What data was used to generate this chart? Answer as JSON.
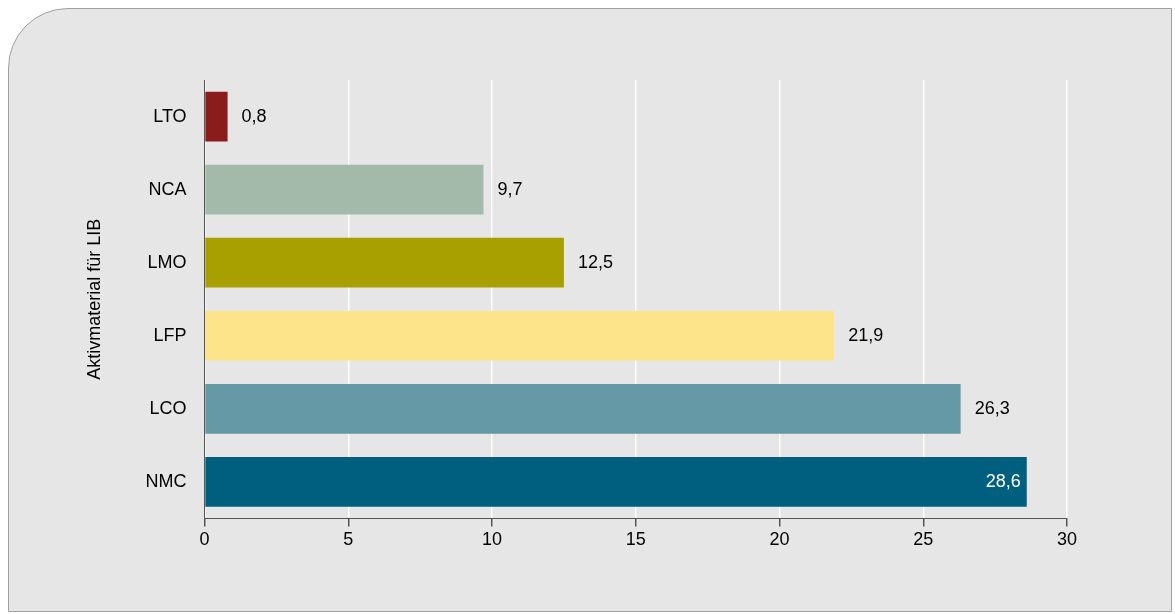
{
  "chart_data": {
    "type": "bar",
    "orientation": "horizontal",
    "ylabel": "Aktivmaterial für LIB",
    "categories": [
      "LTO",
      "NCA",
      "LMO",
      "LFP",
      "LCO",
      "NMC"
    ],
    "values": [
      0.8,
      9.7,
      12.5,
      21.9,
      26.3,
      28.6
    ],
    "value_labels": [
      "0,8",
      "9,7",
      "12,5",
      "21,9",
      "26,3",
      "28,6"
    ],
    "colors": [
      "#8b1c1c",
      "#a3b9aa",
      "#a89f00",
      "#fde38a",
      "#6599a6",
      "#005e7e"
    ],
    "xlim": [
      0,
      30
    ],
    "xticks": [
      0,
      5,
      10,
      15,
      20,
      25,
      30
    ],
    "grid": "x",
    "legend": false
  }
}
